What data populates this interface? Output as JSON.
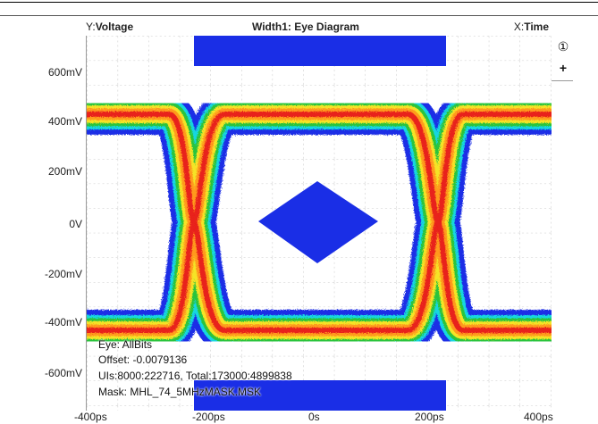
{
  "header": {
    "y_axis_prefix": "Y:",
    "y_axis_name": "Voltage",
    "title": "Width1: Eye Diagram",
    "x_axis_prefix": "X:",
    "x_axis_name": "Time"
  },
  "y_ticks": [
    "600mV",
    "400mV",
    "200mV",
    "0V",
    "-200mV",
    "-400mV",
    "-600mV"
  ],
  "x_ticks": [
    "-400ps",
    "-200ps",
    "0s",
    "200ps",
    "400ps"
  ],
  "side_buttons": {
    "cursor_label": "①",
    "add_label": "+"
  },
  "info": {
    "eye": "Eye: AllBits",
    "offset": "Offset: -0.0079136",
    "uis": "UIs:8000:222716, Total:173000:4899838",
    "mask": "Mask: MHL_74_5MHzMASK.MSK"
  },
  "colors": {
    "mask": "#1a2ee6",
    "heat_outer": "#1a2ee6",
    "heat_cyan": "#17d6e0",
    "heat_green": "#29c43c",
    "heat_yellow": "#f5e326",
    "heat_orange": "#ff9a1f",
    "heat_red": "#e8201a"
  }
}
